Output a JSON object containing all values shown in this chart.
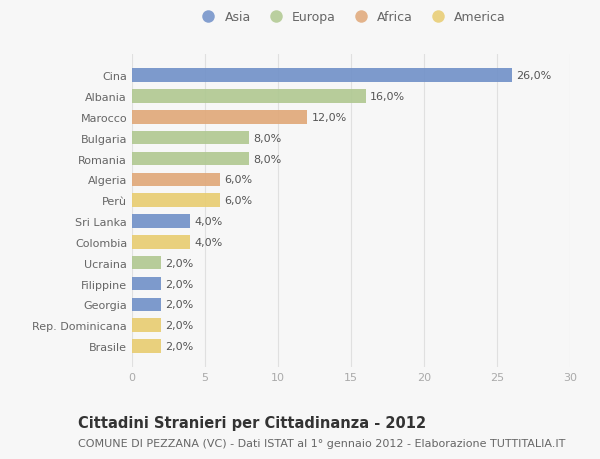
{
  "countries": [
    "Cina",
    "Albania",
    "Marocco",
    "Bulgaria",
    "Romania",
    "Algeria",
    "Perù",
    "Sri Lanka",
    "Colombia",
    "Ucraina",
    "Filippine",
    "Georgia",
    "Rep. Dominicana",
    "Brasile"
  ],
  "values": [
    26.0,
    16.0,
    12.0,
    8.0,
    8.0,
    6.0,
    6.0,
    4.0,
    4.0,
    2.0,
    2.0,
    2.0,
    2.0,
    2.0
  ],
  "continents": [
    "Asia",
    "Europa",
    "Africa",
    "Europa",
    "Europa",
    "Africa",
    "America",
    "Asia",
    "America",
    "Europa",
    "Asia",
    "Asia",
    "America",
    "America"
  ],
  "continent_colors": {
    "Asia": "#7090c8",
    "Europa": "#b0c890",
    "Africa": "#e0a878",
    "America": "#e8cc70"
  },
  "legend_order": [
    "Asia",
    "Europa",
    "Africa",
    "America"
  ],
  "title": "Cittadini Stranieri per Cittadinanza - 2012",
  "subtitle": "COMUNE DI PEZZANA (VC) - Dati ISTAT al 1° gennaio 2012 - Elaborazione TUTTITALIA.IT",
  "xlim": [
    0,
    30
  ],
  "xticks": [
    0,
    5,
    10,
    15,
    20,
    25,
    30
  ],
  "background_color": "#f7f7f7",
  "grid_color": "#e0e0e0",
  "title_fontsize": 10.5,
  "subtitle_fontsize": 8.0,
  "label_fontsize": 8.0,
  "tick_fontsize": 8.0,
  "legend_fontsize": 9.0
}
